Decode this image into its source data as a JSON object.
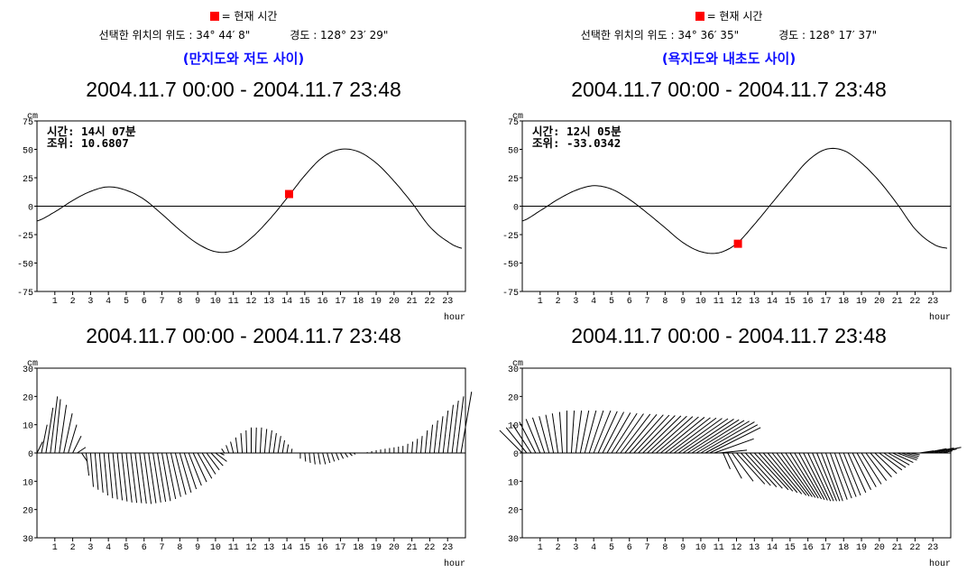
{
  "legend": {
    "marker_color": "#ff0000",
    "label": "= 현재 시간"
  },
  "panels": [
    {
      "latitude_label": "선택한 위치의 위도 : 34° 44′ 8\"",
      "longitude_label": "경도 : 128° 23′ 29\"",
      "place": "(만지도와 저도 사이)",
      "info_time": "시간: 14시 07분",
      "info_level": "조위: 10.6807"
    },
    {
      "latitude_label": "선택한 위치의 위도 : 34° 36′ 35\"",
      "longitude_label": "경도 : 128° 17′ 37\"",
      "place": "(욕지도와 내초도 사이)",
      "info_time": "시간: 12시 05분",
      "info_level": "조위: -33.0342"
    }
  ],
  "chart_data": [
    {
      "type": "line",
      "title": "2004.11.7 00:00 - 2004.11.7 23:48",
      "xlabel": "hour",
      "ylabel": "cm",
      "xlim": [
        0,
        24
      ],
      "ylim": [
        -75,
        75
      ],
      "xticks": [
        1,
        2,
        3,
        4,
        5,
        6,
        7,
        8,
        9,
        10,
        11,
        12,
        13,
        14,
        15,
        16,
        17,
        18,
        19,
        20,
        21,
        22,
        23
      ],
      "yticks": [
        75,
        50,
        25,
        0,
        -25,
        -50,
        -75
      ],
      "x": [
        0,
        1,
        2,
        3,
        4,
        5,
        6,
        7,
        8,
        9,
        10,
        11,
        12,
        13,
        14,
        15,
        16,
        17,
        18,
        19,
        20,
        21,
        22,
        23,
        23.8
      ],
      "y": [
        -13,
        -5,
        5,
        13,
        17,
        14,
        6,
        -7,
        -21,
        -33,
        -40,
        -39,
        -28,
        -12,
        7,
        27,
        43,
        50,
        48,
        38,
        22,
        3,
        -18,
        -31,
        -37
      ],
      "current": {
        "hour": 14.12,
        "value": 10.6807,
        "color": "#ff0000"
      }
    },
    {
      "type": "stick",
      "title": "2004.11.7 00:00 - 2004.11.7 23:48",
      "xlabel": "hour",
      "ylabel": "cm",
      "xlim": [
        0,
        24
      ],
      "ylim": [
        -30,
        30
      ],
      "xticks": [
        1,
        2,
        3,
        4,
        5,
        6,
        7,
        8,
        9,
        10,
        11,
        12,
        13,
        14,
        15,
        16,
        17,
        18,
        19,
        20,
        21,
        22,
        23
      ],
      "yticks": [
        "30",
        "20",
        "10",
        "0",
        "10",
        "20",
        "30"
      ],
      "ytick_values": [
        30,
        20,
        10,
        0,
        -10,
        -20,
        -30
      ],
      "sample_interval_hours": 0.25,
      "t": [
        0,
        0.25,
        0.5,
        0.75,
        1,
        1.25,
        1.5,
        1.75,
        2,
        2.25,
        2.5,
        2.75,
        3,
        4,
        5,
        6,
        7,
        8,
        9,
        10,
        10.5,
        11,
        11.5,
        12,
        12.5,
        13,
        13.5,
        14,
        14.5,
        14.75,
        15,
        15.5,
        16,
        16.5,
        17,
        17.5,
        18,
        18.5,
        19,
        20,
        20.5,
        21,
        21.5,
        22,
        22.5,
        23,
        23.5,
        23.8
      ],
      "u": [
        2,
        2,
        2.5,
        2.5,
        2,
        2.5,
        3,
        3,
        3,
        3,
        2,
        1,
        1,
        1.5,
        2,
        2.5,
        3,
        4,
        5,
        4,
        -1,
        -1,
        -0.5,
        0,
        0.5,
        1,
        1,
        0.5,
        0,
        0,
        0.3,
        0.5,
        1,
        1,
        1,
        1,
        0,
        0,
        0,
        0,
        0,
        0.3,
        0.5,
        1,
        1.5,
        2,
        2.5,
        4
      ],
      "v": [
        4,
        10,
        16,
        20,
        19,
        17,
        14,
        10,
        6,
        2,
        -3,
        -8,
        -12,
        -16,
        -17.5,
        -18,
        -17,
        -14,
        -9,
        -3,
        1.5,
        4,
        7,
        9,
        9,
        8,
        6,
        3,
        0,
        -2,
        -3,
        -4,
        -4,
        -3,
        -2,
        -1,
        0,
        0.3,
        1,
        2,
        2.5,
        4,
        6,
        10,
        13,
        17,
        20,
        22
      ]
    },
    {
      "type": "line",
      "title": "2004.11.7 00:00 - 2004.11.7 23:48",
      "xlabel": "hour",
      "ylabel": "cm",
      "xlim": [
        0,
        24
      ],
      "ylim": [
        -75,
        75
      ],
      "xticks": [
        1,
        2,
        3,
        4,
        5,
        6,
        7,
        8,
        9,
        10,
        11,
        12,
        13,
        14,
        15,
        16,
        17,
        18,
        19,
        20,
        21,
        22,
        23
      ],
      "yticks": [
        75,
        50,
        25,
        0,
        -25,
        -50,
        -75
      ],
      "x": [
        0,
        1,
        2,
        3,
        4,
        5,
        6,
        7,
        8,
        9,
        10,
        11,
        12,
        13,
        14,
        15,
        16,
        17,
        18,
        19,
        20,
        21,
        22,
        23,
        23.8
      ],
      "y": [
        -13,
        -4,
        6,
        14,
        18,
        15,
        6,
        -6,
        -19,
        -32,
        -40,
        -41,
        -33,
        -16,
        3,
        22,
        40,
        50,
        49,
        38,
        22,
        2,
        -20,
        -33,
        -37
      ],
      "current": {
        "hour": 12.08,
        "value": -33.0342,
        "color": "#ff0000"
      }
    },
    {
      "type": "stick",
      "title": "2004.11.7 00:00 - 2004.11.7 23:48",
      "xlabel": "hour",
      "ylabel": "cm",
      "xlim": [
        0,
        24
      ],
      "ylim": [
        -30,
        30
      ],
      "xticks": [
        1,
        2,
        3,
        4,
        5,
        6,
        7,
        8,
        9,
        10,
        11,
        12,
        13,
        14,
        15,
        16,
        17,
        18,
        19,
        20,
        21,
        22,
        23
      ],
      "yticks": [
        "30",
        "20",
        "10",
        "0",
        "10",
        "20",
        "30"
      ],
      "ytick_values": [
        30,
        20,
        10,
        0,
        -10,
        -20,
        -30
      ],
      "sample_interval_hours": 0.25,
      "t": [
        0,
        1,
        2,
        2.5,
        3,
        4,
        5,
        6,
        7,
        8,
        9,
        10,
        10.5,
        11,
        11.2,
        11.5,
        12,
        13,
        14,
        15,
        16,
        17,
        18,
        19,
        20,
        21,
        22,
        22.5,
        23,
        23.8
      ],
      "u": [
        -8,
        -5,
        -2,
        0,
        2,
        6,
        9,
        12,
        14,
        16,
        18,
        19,
        18,
        10,
        2,
        5,
        10,
        12,
        12,
        10,
        8,
        6,
        6,
        7,
        8,
        7,
        2,
        8,
        10,
        0
      ],
      "v": [
        8,
        12,
        14,
        15,
        15,
        15,
        14,
        13.5,
        13,
        12.5,
        12,
        11,
        9,
        1,
        -5,
        -9,
        -11,
        -13,
        -15,
        -16,
        -17,
        -17,
        -15,
        -11,
        -6,
        -2.5,
        0,
        1.5,
        2,
        0
      ]
    }
  ]
}
